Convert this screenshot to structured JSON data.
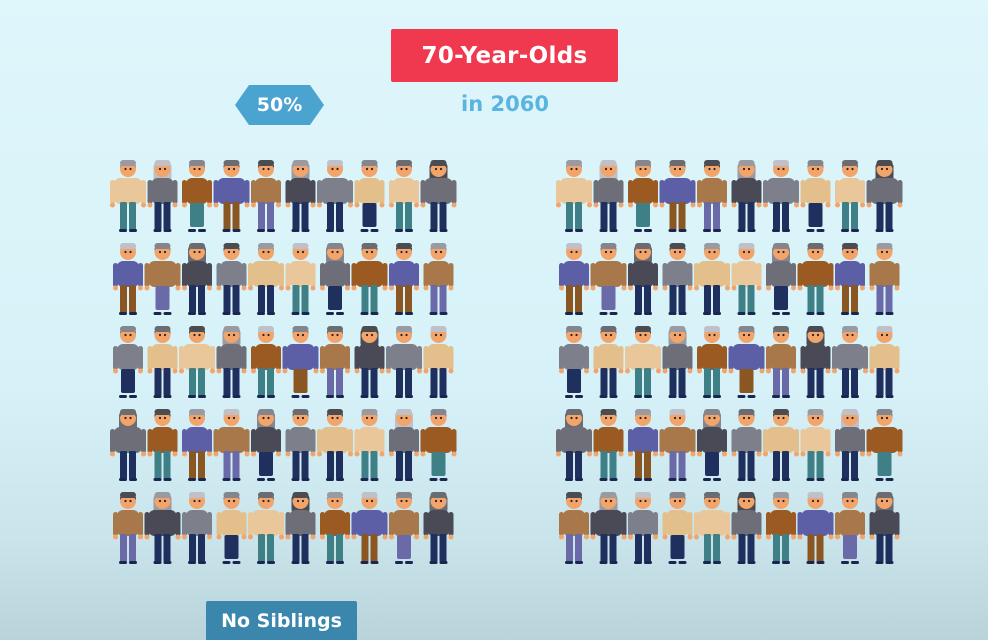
{
  "header": {
    "title": "70-Year-Olds",
    "subtitle": "in 2060"
  },
  "share_badge": {
    "label": "50%"
  },
  "footer_badge": {
    "label": "No Siblings"
  },
  "groups": [
    {
      "id": "left-group",
      "rows": 5,
      "columns": 10
    },
    {
      "id": "right-group",
      "rows": 5,
      "columns": 10
    }
  ],
  "colors": {
    "title_badge": "#f0384f",
    "subtitle": "#5ab4e0",
    "share_badge": "#4ba3cf",
    "footer_badge": "#3a86ad",
    "pants_navy": "#1f2f5e",
    "skin": "#f2a46a"
  }
}
